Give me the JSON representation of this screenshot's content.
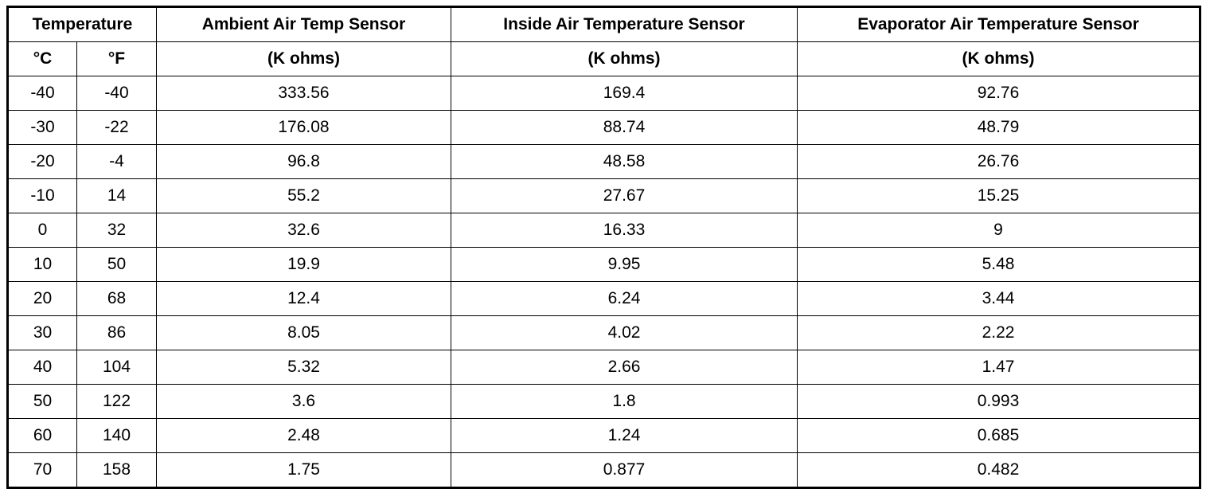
{
  "table": {
    "header": {
      "row1": [
        "Temperature",
        "Ambient Air Temp Sensor",
        "Inside Air Temperature Sensor",
        "Evaporator Air Temperature Sensor"
      ],
      "row2": [
        "°C",
        "°F",
        "(K ohms)",
        "(K ohms)",
        "(K ohms)"
      ]
    },
    "rows": [
      [
        "-40",
        "-40",
        "333.56",
        "169.4",
        "92.76"
      ],
      [
        "-30",
        "-22",
        "176.08",
        "88.74",
        "48.79"
      ],
      [
        "-20",
        "-4",
        "96.8",
        "48.58",
        "26.76"
      ],
      [
        "-10",
        "14",
        "55.2",
        "27.67",
        "15.25"
      ],
      [
        "0",
        "32",
        "32.6",
        "16.33",
        "9"
      ],
      [
        "10",
        "50",
        "19.9",
        "9.95",
        "5.48"
      ],
      [
        "20",
        "68",
        "12.4",
        "6.24",
        "3.44"
      ],
      [
        "30",
        "86",
        "8.05",
        "4.02",
        "2.22"
      ],
      [
        "40",
        "104",
        "5.32",
        "2.66",
        "1.47"
      ],
      [
        "50",
        "122",
        "3.6",
        "1.8",
        "0.993"
      ],
      [
        "60",
        "140",
        "2.48",
        "1.24",
        "0.685"
      ],
      [
        "70",
        "158",
        "1.75",
        "0.877",
        "0.482"
      ]
    ]
  }
}
